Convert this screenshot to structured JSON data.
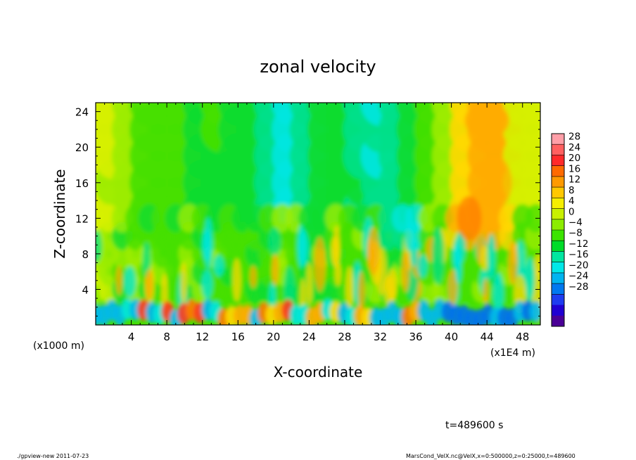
{
  "chart_data": {
    "type": "heatmap",
    "title": "zonal velocity",
    "xlabel": "X-coordinate",
    "ylabel": "Z-coordinate",
    "x_unit_left": "(x1000 m)",
    "x_unit_right": "(x1E4 m)",
    "xlim": [
      0,
      50
    ],
    "ylim": [
      0,
      25
    ],
    "xticks": [
      "4",
      "8",
      "12",
      "16",
      "20",
      "24",
      "28",
      "32",
      "36",
      "40",
      "44",
      "48"
    ],
    "yticks": [
      "4",
      "8",
      "12",
      "16",
      "20",
      "24"
    ],
    "colorbar": {
      "labels": [
        "28",
        "24",
        "20",
        "16",
        "12",
        "8",
        "4",
        "0",
        "−4",
        "−8",
        "−12",
        "−16",
        "−20",
        "−24",
        "−28"
      ],
      "colors": [
        "#ff9fa8",
        "#ff6060",
        "#ff2a2a",
        "#ff6a00",
        "#ff9a00",
        "#ffc800",
        "#f5ee00",
        "#c8f000",
        "#8cec00",
        "#3ce400",
        "#00dc28",
        "#00e6a0",
        "#00e8e8",
        "#00b4f0",
        "#0078f0",
        "#1e3cf0",
        "#2000d2",
        "#4a0096"
      ]
    },
    "field": {
      "description_only": false,
      "background_range": [
        -6,
        6
      ],
      "upper_region_max_near_x": 44,
      "upper_region_value": 14,
      "lower_layer_extremes": [
        -20,
        22
      ]
    }
  },
  "annotation": {
    "time": "t=489600 s",
    "footer_left": "./gpview-new   2011-07-23",
    "footer_right": "MarsCond_VelX.nc@VelX,x=0:500000,z=0:25000,t=489600"
  }
}
